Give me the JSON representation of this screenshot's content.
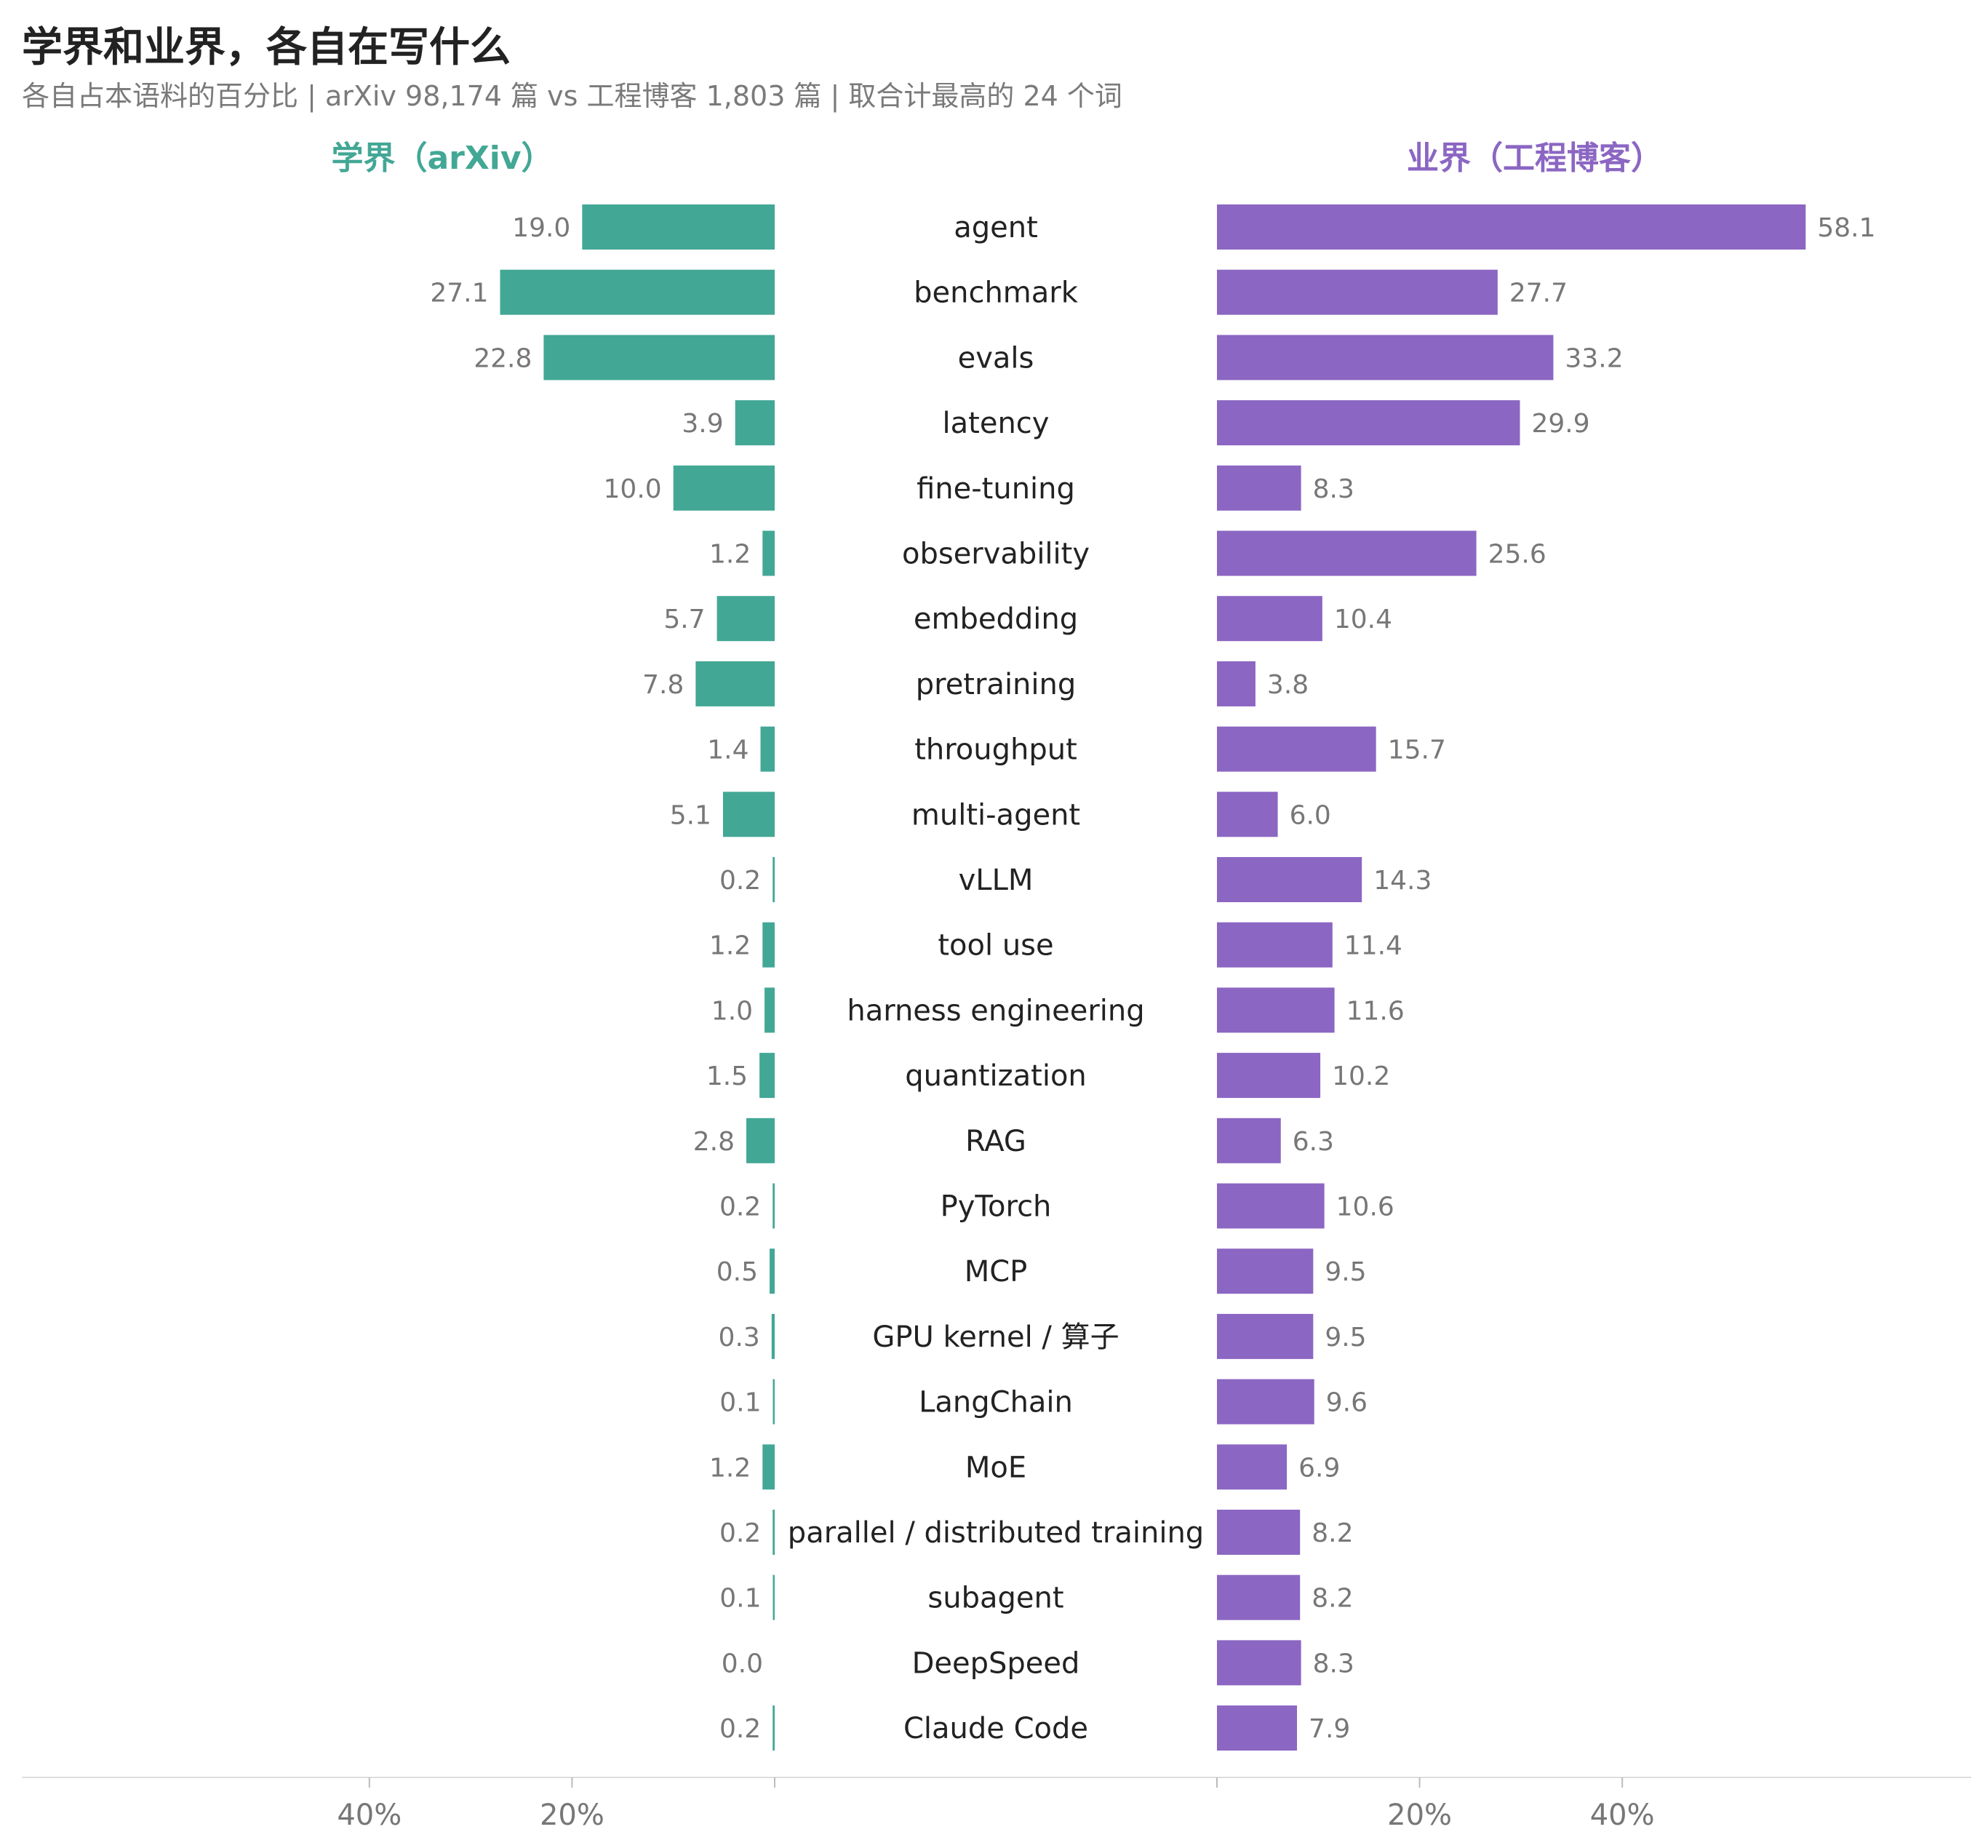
{
  "title": "学界和业界，各自在写什么",
  "subtitle": "各自占本语料的百分比 | arXiv 98,174 篇 vs 工程博客 1,803 篇 | 取合计最高的 24 个词",
  "colors": {
    "academia": "#43a795",
    "industry": "#8b66c3",
    "axis": "#dddddd",
    "category_text": "#222222",
    "value_text": "#777777"
  },
  "chart_data": {
    "type": "bar",
    "orientation": "horizontal-butterfly",
    "categories": [
      "agent",
      "benchmark",
      "evals",
      "latency",
      "fine-tuning",
      "observability",
      "embedding",
      "pretraining",
      "throughput",
      "multi-agent",
      "vLLM",
      "tool use",
      "harness engineering",
      "quantization",
      "RAG",
      "PyTorch",
      "MCP",
      "GPU kernel / 算子",
      "LangChain",
      "MoE",
      "parallel / distributed training",
      "subagent",
      "DeepSpeed",
      "Claude Code"
    ],
    "series": [
      {
        "name": "学界（arXiv）",
        "side": "left",
        "color": "#43a795",
        "values": [
          19.0,
          27.1,
          22.8,
          3.9,
          10.0,
          1.2,
          5.7,
          7.8,
          1.4,
          5.1,
          0.2,
          1.2,
          1.0,
          1.5,
          2.8,
          0.2,
          0.5,
          0.3,
          0.1,
          1.2,
          0.2,
          0.1,
          0.0,
          0.2
        ],
        "value_labels": [
          "19.0",
          "27.1",
          "22.8",
          "3.9",
          "10.0",
          "1.2",
          "5.7",
          "7.8",
          "1.4",
          "5.1",
          "0.2",
          "1.2",
          "1.0",
          "1.5",
          "2.8",
          "0.2",
          "0.5",
          "0.3",
          "0.1",
          "1.2",
          "0.2",
          "0.1",
          "0.0",
          "0.2"
        ]
      },
      {
        "name": "业界（工程博客）",
        "side": "right",
        "color": "#8b66c3",
        "values": [
          58.1,
          27.7,
          33.2,
          29.9,
          8.3,
          25.6,
          10.4,
          3.8,
          15.7,
          6.0,
          14.3,
          11.4,
          11.6,
          10.2,
          6.3,
          10.6,
          9.5,
          9.5,
          9.6,
          6.9,
          8.2,
          8.2,
          8.3,
          7.9
        ],
        "value_labels": [
          "58.1",
          "27.7",
          "33.2",
          "29.9",
          "8.3",
          "25.6",
          "10.4",
          "3.8",
          "15.7",
          "6.0",
          "14.3",
          "11.4",
          "11.6",
          "10.2",
          "6.3",
          "10.6",
          "9.5",
          "9.5",
          "9.6",
          "6.9",
          "8.2",
          "8.2",
          "8.3",
          "7.9"
        ]
      }
    ],
    "x_ticks": {
      "left": [
        40,
        20,
        0
      ],
      "right": [
        0,
        20,
        40
      ]
    },
    "x_tick_labels": {
      "left": [
        "40%",
        "20%",
        ""
      ],
      "right": [
        "",
        "20%",
        "40%"
      ]
    },
    "xlim": [
      0,
      60
    ],
    "grid": false
  }
}
